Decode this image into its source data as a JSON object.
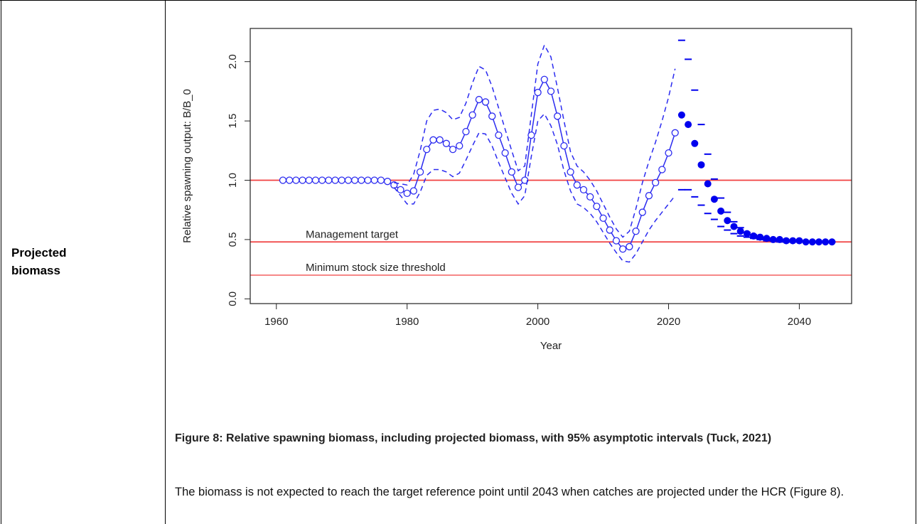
{
  "table": {
    "label": "Projected biomass"
  },
  "chart_data": {
    "type": "line",
    "xlabel": "Year",
    "ylabel": "Relative spawning output: B/B_0",
    "xlim": [
      1956,
      2048
    ],
    "ylim": [
      -0.04,
      2.28
    ],
    "xticks": [
      1960,
      1980,
      2000,
      2020,
      2040
    ],
    "yticks": [
      {
        "value": 0,
        "label": "0.0"
      },
      0.5,
      {
        "value": 1,
        "label": "1.0"
      },
      1.5,
      {
        "value": 2,
        "label": "2.0"
      }
    ],
    "x": [
      1961,
      1962,
      1963,
      1964,
      1965,
      1966,
      1967,
      1968,
      1969,
      1970,
      1971,
      1972,
      1973,
      1974,
      1975,
      1976,
      1977,
      1978,
      1979,
      1980,
      1981,
      1982,
      1983,
      1984,
      1985,
      1986,
      1987,
      1988,
      1989,
      1990,
      1991,
      1992,
      1993,
      1994,
      1995,
      1996,
      1997,
      1998,
      1999,
      2000,
      2001,
      2002,
      2003,
      2004,
      2005,
      2006,
      2007,
      2008,
      2009,
      2010,
      2011,
      2012,
      2013,
      2014,
      2015,
      2016,
      2017,
      2018,
      2019,
      2020,
      2021,
      2022,
      2023,
      2024,
      2025,
      2026,
      2027,
      2028,
      2029,
      2030,
      2031,
      2032,
      2033,
      2034,
      2035,
      2036,
      2037,
      2038,
      2039,
      2040,
      2041,
      2042,
      2043,
      2044,
      2045
    ],
    "series": [
      {
        "style": "line-circle",
        "color": "#2b2bf0",
        "values": [
          1,
          1,
          1,
          1,
          1,
          1,
          1,
          1,
          1,
          1,
          1,
          1,
          1,
          1,
          1,
          1,
          0.99,
          0.96,
          0.92,
          0.89,
          0.91,
          1.07,
          1.26,
          1.34,
          1.34,
          1.31,
          1.26,
          1.29,
          1.41,
          1.55,
          1.68,
          1.66,
          1.54,
          1.38,
          1.23,
          1.07,
          0.94,
          1.0,
          1.38,
          1.74,
          1.85,
          1.75,
          1.54,
          1.29,
          1.07,
          0.96,
          0.92,
          0.86,
          0.78,
          0.68,
          0.58,
          0.49,
          0.42,
          0.44,
          0.57,
          0.73,
          0.87,
          0.98,
          1.09,
          1.23,
          1.4,
          null,
          null,
          null,
          null,
          null,
          null,
          null,
          null,
          null,
          null,
          null,
          null,
          null,
          null,
          null,
          null,
          null,
          null,
          null,
          null,
          null,
          null,
          null,
          null
        ]
      },
      {
        "style": "dashed-line",
        "color": "#2b2bf0",
        "values": [
          null,
          null,
          null,
          null,
          null,
          null,
          null,
          null,
          null,
          null,
          null,
          null,
          null,
          null,
          null,
          null,
          null,
          0.98,
          0.97,
          0.96,
          1.05,
          1.25,
          1.5,
          1.59,
          1.6,
          1.57,
          1.51,
          1.53,
          1.65,
          1.82,
          1.96,
          1.93,
          1.79,
          1.61,
          1.43,
          1.25,
          1.08,
          1.12,
          1.55,
          1.98,
          2.14,
          2.04,
          1.78,
          1.5,
          1.24,
          1.12,
          1.07,
          1.0,
          0.91,
          0.8,
          0.69,
          0.59,
          0.52,
          0.57,
          0.76,
          0.98,
          1.16,
          1.32,
          1.5,
          1.7,
          1.94,
          null,
          null,
          null,
          null,
          null,
          null,
          null,
          null,
          null,
          null,
          null,
          null,
          null,
          null,
          null,
          null,
          null,
          null,
          null,
          null,
          null,
          null,
          null,
          null
        ]
      },
      {
        "style": "dashed-line",
        "color": "#2b2bf0",
        "values": [
          null,
          null,
          null,
          null,
          null,
          null,
          null,
          null,
          null,
          null,
          null,
          null,
          null,
          null,
          null,
          null,
          null,
          0.94,
          0.87,
          0.8,
          0.8,
          0.9,
          1.04,
          1.09,
          1.09,
          1.07,
          1.03,
          1.06,
          1.17,
          1.29,
          1.4,
          1.39,
          1.29,
          1.15,
          1.02,
          0.89,
          0.8,
          0.87,
          1.2,
          1.5,
          1.56,
          1.46,
          1.3,
          1.08,
          0.91,
          0.8,
          0.77,
          0.72,
          0.65,
          0.56,
          0.47,
          0.39,
          0.32,
          0.31,
          0.38,
          0.48,
          0.58,
          0.66,
          0.73,
          0.8,
          0.87,
          null,
          null,
          null,
          null,
          null,
          null,
          null,
          null,
          null,
          null,
          null,
          null,
          null,
          null,
          null,
          null,
          null,
          null,
          null,
          null,
          null,
          null,
          null,
          null
        ]
      },
      {
        "style": "dot",
        "color": "#0000ee",
        "values": [
          null,
          null,
          null,
          null,
          null,
          null,
          null,
          null,
          null,
          null,
          null,
          null,
          null,
          null,
          null,
          null,
          null,
          null,
          null,
          null,
          null,
          null,
          null,
          null,
          null,
          null,
          null,
          null,
          null,
          null,
          null,
          null,
          null,
          null,
          null,
          null,
          null,
          null,
          null,
          null,
          null,
          null,
          null,
          null,
          null,
          null,
          null,
          null,
          null,
          null,
          null,
          null,
          null,
          null,
          null,
          null,
          null,
          null,
          null,
          null,
          null,
          1.55,
          1.47,
          1.31,
          1.13,
          0.97,
          0.84,
          0.74,
          0.66,
          0.61,
          0.57,
          0.55,
          0.53,
          0.52,
          0.51,
          0.5,
          0.5,
          0.49,
          0.49,
          0.49,
          0.48,
          0.48,
          0.48,
          0.48,
          0.48
        ]
      },
      {
        "style": "dash",
        "color": "#0000ee",
        "values": [
          null,
          null,
          null,
          null,
          null,
          null,
          null,
          null,
          null,
          null,
          null,
          null,
          null,
          null,
          null,
          null,
          null,
          null,
          null,
          null,
          null,
          null,
          null,
          null,
          null,
          null,
          null,
          null,
          null,
          null,
          null,
          null,
          null,
          null,
          null,
          null,
          null,
          null,
          null,
          null,
          null,
          null,
          null,
          null,
          null,
          null,
          null,
          null,
          null,
          null,
          null,
          null,
          null,
          null,
          null,
          null,
          null,
          null,
          null,
          null,
          null,
          2.18,
          2.02,
          1.76,
          1.47,
          1.22,
          1.01,
          0.85,
          0.73,
          0.65,
          0.6,
          0.56,
          0.54,
          0.52,
          0.51,
          0.5,
          0.5,
          0.49,
          0.49,
          0.49,
          0.48,
          0.48,
          0.48,
          0.48,
          0.48
        ]
      },
      {
        "style": "dash",
        "color": "#0000ee",
        "values": [
          null,
          null,
          null,
          null,
          null,
          null,
          null,
          null,
          null,
          null,
          null,
          null,
          null,
          null,
          null,
          null,
          null,
          null,
          null,
          null,
          null,
          null,
          null,
          null,
          null,
          null,
          null,
          null,
          null,
          null,
          null,
          null,
          null,
          null,
          null,
          null,
          null,
          null,
          null,
          null,
          null,
          null,
          null,
          null,
          null,
          null,
          null,
          null,
          null,
          null,
          null,
          null,
          null,
          null,
          null,
          null,
          null,
          null,
          null,
          null,
          null,
          0.92,
          0.92,
          0.86,
          0.79,
          0.72,
          0.67,
          0.61,
          0.58,
          0.55,
          0.53,
          0.52,
          0.51,
          0.5,
          0.49,
          0.49,
          0.48,
          0.48,
          0.48,
          0.48,
          0.48,
          0.48,
          0.48,
          0.48,
          0.48
        ]
      }
    ],
    "reference_lines": [
      {
        "value": 1.0,
        "color": "#f04040"
      },
      {
        "value": 0.48,
        "color": "#f04040",
        "label": "Management target"
      },
      {
        "value": 0.2,
        "color": "#f04040",
        "label": "Minimum stock size threshold"
      }
    ]
  },
  "figure": {
    "caption": "Figure 8: Relative spawning biomass, including projected biomass, with 95% asymptotic intervals (Tuck, 2021)",
    "text": "The biomass is not expected to reach the target reference point until 2043 when catches are projected under the HCR (Figure 8)."
  }
}
